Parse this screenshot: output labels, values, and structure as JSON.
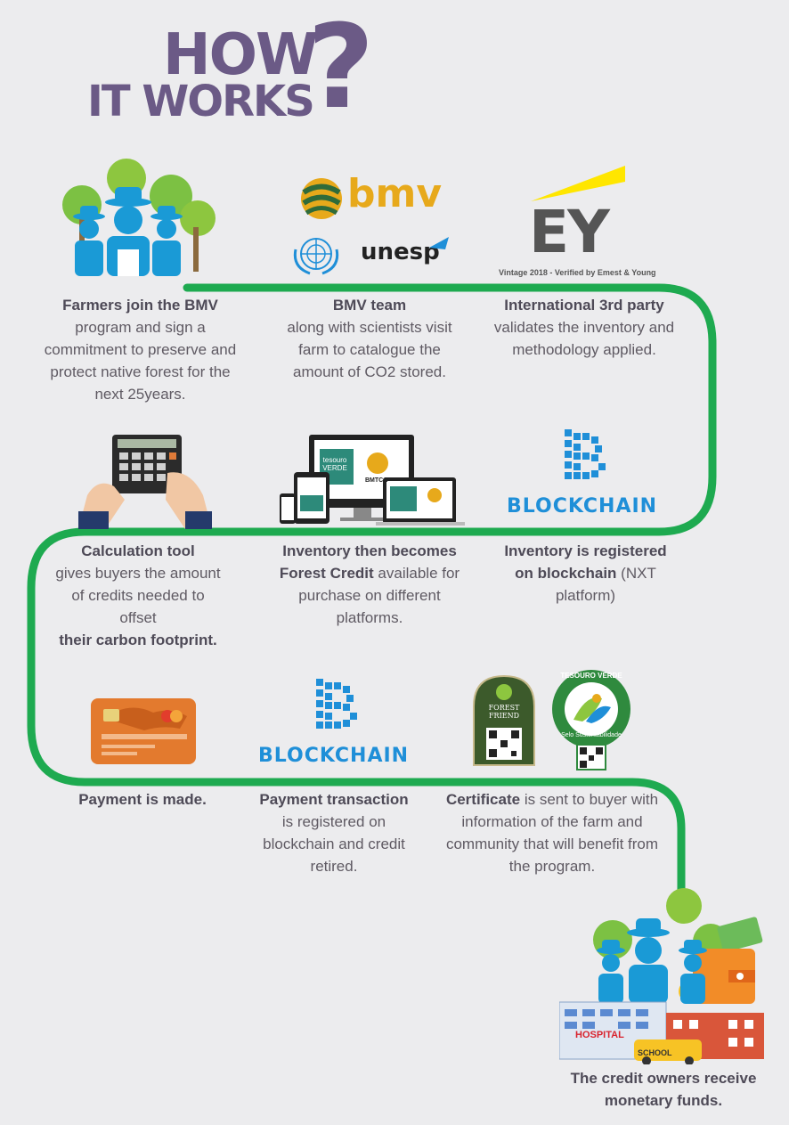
{
  "title": {
    "line1": "HOW",
    "line2": "IT WORKS",
    "mark": "?"
  },
  "logos": {
    "bmv": "bmv",
    "unesp": "unesp",
    "ey": "EY",
    "ey_caption": "Vintage 2018 - Verified by Emest & Young",
    "blockchain_1": "BLOCKCHAIN",
    "blockchain_2": "BLOCKCHAIN",
    "tesouro_verde": "tesouro VERDE",
    "bmtca": "BMTCA",
    "forest_friend": "FOREST FRIEND",
    "tesouro_seal": "TESOURO VERDE",
    "seal_sub": "Selo Sustentabilidade",
    "hospital": "HOSPITAL",
    "school": "SCHOOL"
  },
  "steps": {
    "s1": {
      "bold": "Farmers join the BMV",
      "rest": "program and sign a commitment to preserve and protect native forest for the next 25years."
    },
    "s2": {
      "bold": "BMV team",
      "rest": "along with scientists visit farm to catalogue the amount of CO2 stored."
    },
    "s3": {
      "bold": "International 3rd party",
      "rest": "validates the inventory and methodology applied."
    },
    "s4": {
      "bold": "Calculation tool",
      "rest": "gives buyers the amount of credits needed to offset",
      "bold2": "their carbon footprint."
    },
    "s5": {
      "bold": "Inventory then becomes",
      "bold2": "Forest Credit",
      "rest": "available for purchase on different platforms."
    },
    "s6": {
      "bold": "Inventory is registered on blockchain",
      "rest": "(NXT platform)"
    },
    "s7": {
      "bold": "Payment is made."
    },
    "s8": {
      "bold": "Payment transaction",
      "rest": "is registered on blockchain and credit retired."
    },
    "s9": {
      "bold": "Certificate",
      "rest": "is sent to buyer with information of the farm and community that will benefit from the program."
    },
    "s10": {
      "bold": "The credit owners receive monetary funds."
    }
  },
  "colors": {
    "path": "#1eaa50",
    "title": "#6b5a86",
    "text": "#5f5a63",
    "blockchain": "#1f8fd8",
    "farmer": "#1a9ad6"
  }
}
